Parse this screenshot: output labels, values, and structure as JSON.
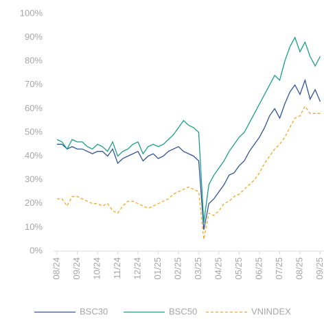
{
  "chart_data": {
    "type": "line",
    "categories": [
      "08/24",
      null,
      null,
      null,
      "09/24",
      null,
      null,
      null,
      "10/24",
      null,
      null,
      null,
      "11/24",
      null,
      null,
      null,
      "12/24",
      null,
      null,
      null,
      "01/25",
      null,
      null,
      null,
      "02/25",
      null,
      null,
      null,
      "03/25",
      null,
      null,
      null,
      "04/25",
      null,
      null,
      null,
      "05/25",
      null,
      null,
      null,
      "06/25",
      null,
      null,
      null,
      "07/25",
      null,
      null,
      null,
      "08/25",
      null,
      null,
      null,
      "09/25"
    ],
    "series": [
      {
        "name": "BSC30",
        "color": "#2f5597",
        "dash": false,
        "values": [
          45,
          45,
          43,
          44,
          43,
          43,
          42,
          41,
          42,
          42,
          40,
          43,
          37,
          39,
          40,
          41,
          42,
          38,
          40,
          41,
          39,
          40,
          42,
          43,
          44,
          42,
          41,
          40,
          38,
          9,
          20,
          22,
          25,
          28,
          32,
          33,
          36,
          38,
          42,
          45,
          48,
          52,
          57,
          60,
          56,
          62,
          67,
          70,
          66,
          72,
          64,
          68,
          63
        ]
      },
      {
        "name": "BSC50",
        "color": "#1a9e8c",
        "dash": false,
        "values": [
          47,
          46,
          43,
          47,
          46,
          46,
          44,
          43,
          45,
          44,
          42,
          46,
          40,
          42,
          43,
          45,
          46,
          41,
          44,
          45,
          44,
          45,
          47,
          49,
          52,
          55,
          53,
          52,
          50,
          12,
          28,
          32,
          35,
          38,
          42,
          45,
          48,
          50,
          54,
          58,
          62,
          66,
          70,
          74,
          72,
          80,
          86,
          90,
          84,
          88,
          82,
          78,
          82
        ]
      },
      {
        "name": "VNINDEX",
        "color": "#f5a623",
        "dash": true,
        "values": [
          22,
          22,
          19,
          23,
          23,
          22,
          21,
          20,
          20,
          19,
          20,
          17,
          16,
          19,
          21,
          21,
          20,
          19,
          18,
          19,
          20,
          21,
          22,
          24,
          25,
          26,
          27,
          26,
          25,
          5,
          16,
          15,
          17,
          20,
          21,
          23,
          24,
          26,
          28,
          30,
          33,
          37,
          40,
          43,
          45,
          48,
          52,
          56,
          57,
          61,
          58,
          58,
          58
        ]
      }
    ],
    "ylim": [
      0,
      100
    ],
    "yticks": [
      {
        "value": 0,
        "label": "0%"
      },
      {
        "value": 10,
        "label": "10%"
      },
      {
        "value": 20,
        "label": "20%"
      },
      {
        "value": 30,
        "label": "30%"
      },
      {
        "value": 40,
        "label": "40%"
      },
      {
        "value": 50,
        "label": "50%"
      },
      {
        "value": 60,
        "label": "60%"
      },
      {
        "value": 70,
        "label": "70%"
      },
      {
        "value": 80,
        "label": "80%"
      },
      {
        "value": 90,
        "label": "90%"
      },
      {
        "value": 100,
        "label": "100%"
      }
    ],
    "grid": false,
    "legend": "bottom"
  }
}
